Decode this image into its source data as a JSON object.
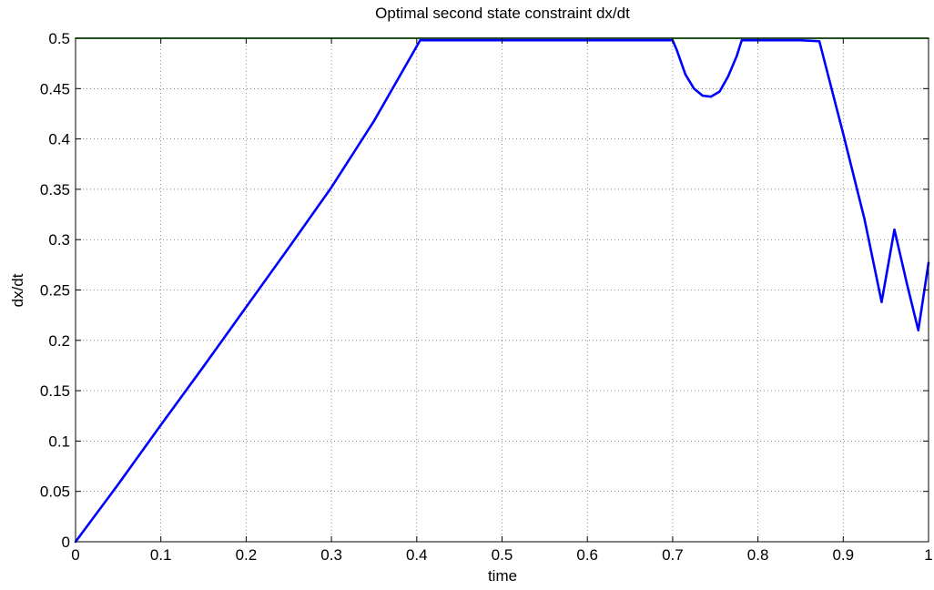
{
  "chart_data": {
    "type": "line",
    "title": "Optimal second state constraint dx/dt",
    "xlabel": "time",
    "ylabel": "dx/dt",
    "xlim": [
      0,
      1
    ],
    "ylim": [
      0,
      0.5
    ],
    "xticks": [
      "0",
      "0.1",
      "0.2",
      "0.3",
      "0.4",
      "0.5",
      "0.6",
      "0.7",
      "0.8",
      "0.9",
      "1"
    ],
    "xtick_values": [
      0,
      0.1,
      0.2,
      0.3,
      0.4,
      0.5,
      0.6,
      0.7,
      0.8,
      0.9,
      1
    ],
    "yticks": [
      "0",
      "0.05",
      "0.1",
      "0.15",
      "0.2",
      "0.25",
      "0.3",
      "0.35",
      "0.4",
      "0.45",
      "0.5"
    ],
    "ytick_values": [
      0,
      0.05,
      0.1,
      0.15,
      0.2,
      0.25,
      0.3,
      0.35,
      0.4,
      0.45,
      0.5
    ],
    "grid": true,
    "series": [
      {
        "color": "#0000ff",
        "x": [
          0,
          0.05,
          0.1,
          0.15,
          0.2,
          0.25,
          0.3,
          0.35,
          0.404,
          0.45,
          0.5,
          0.55,
          0.6,
          0.65,
          0.7,
          0.705,
          0.715,
          0.725,
          0.735,
          0.745,
          0.755,
          0.765,
          0.775,
          0.781,
          0.79,
          0.82,
          0.85,
          0.872,
          0.9,
          0.925,
          0.945,
          0.96,
          0.975,
          0.988,
          1.0
        ],
        "y": [
          0,
          0.057,
          0.116,
          0.174,
          0.233,
          0.292,
          0.352,
          0.418,
          0.498,
          0.498,
          0.498,
          0.498,
          0.498,
          0.498,
          0.498,
          0.488,
          0.464,
          0.45,
          0.443,
          0.442,
          0.447,
          0.462,
          0.482,
          0.498,
          0.498,
          0.498,
          0.498,
          0.497,
          0.405,
          0.32,
          0.238,
          0.31,
          0.255,
          0.21,
          0.277
        ]
      },
      {
        "color": "#007f00",
        "x": [
          0,
          1
        ],
        "y": [
          0.5,
          0.5
        ]
      }
    ]
  }
}
